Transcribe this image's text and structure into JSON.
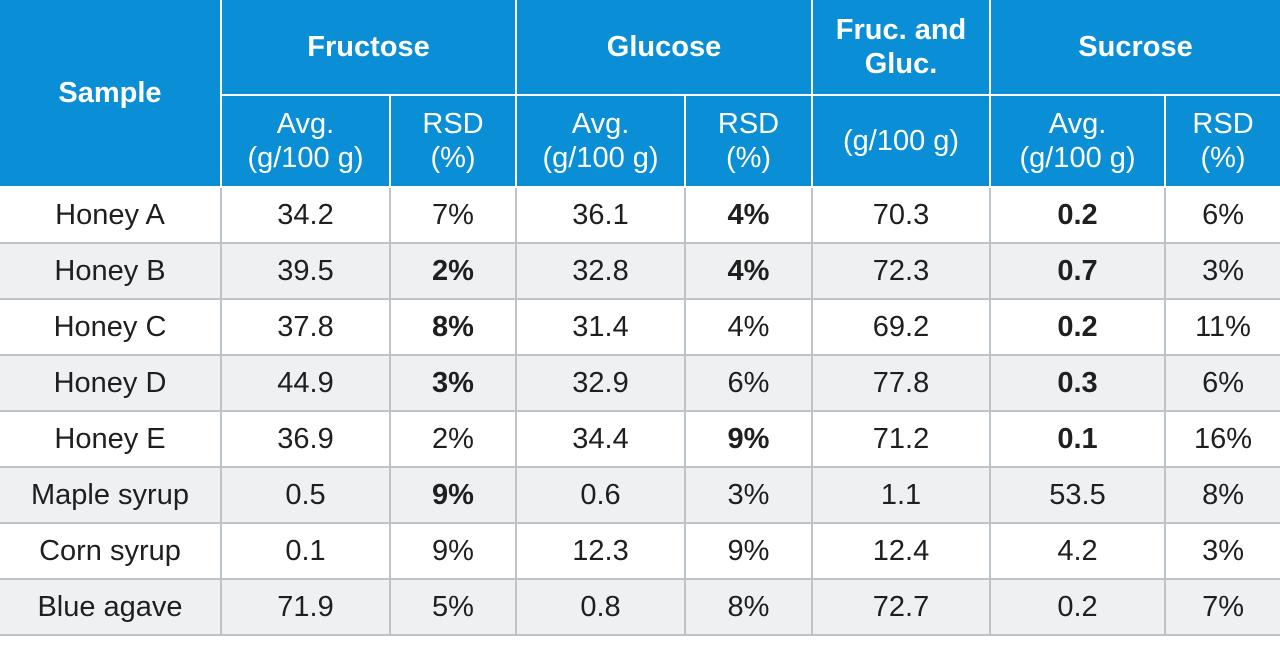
{
  "header": {
    "sample": "Sample",
    "groups": [
      "Fructose",
      "Glucose",
      "Fruc. and Gluc.",
      "Sucrose"
    ],
    "avg": "Avg. (g/100 g)",
    "rsd": "RSD (%)",
    "fruc_gluc_unit": "(g/100 g)"
  },
  "rows": [
    {
      "name": "Honey A",
      "cells": [
        [
          "34.2",
          false
        ],
        [
          "7%",
          false
        ],
        [
          "36.1",
          false
        ],
        [
          "4%",
          true
        ],
        [
          "70.3",
          false
        ],
        [
          "0.2",
          true
        ],
        [
          "6%",
          false
        ]
      ]
    },
    {
      "name": "Honey B",
      "cells": [
        [
          "39.5",
          false
        ],
        [
          "2%",
          true
        ],
        [
          "32.8",
          false
        ],
        [
          "4%",
          true
        ],
        [
          "72.3",
          false
        ],
        [
          "0.7",
          true
        ],
        [
          "3%",
          false
        ]
      ]
    },
    {
      "name": "Honey C",
      "cells": [
        [
          "37.8",
          false
        ],
        [
          "8%",
          true
        ],
        [
          "31.4",
          false
        ],
        [
          "4%",
          false
        ],
        [
          "69.2",
          false
        ],
        [
          "0.2",
          true
        ],
        [
          "11%",
          false
        ]
      ]
    },
    {
      "name": "Honey D",
      "cells": [
        [
          "44.9",
          false
        ],
        [
          "3%",
          true
        ],
        [
          "32.9",
          false
        ],
        [
          "6%",
          false
        ],
        [
          "77.8",
          false
        ],
        [
          "0.3",
          true
        ],
        [
          "6%",
          false
        ]
      ]
    },
    {
      "name": "Honey E",
      "cells": [
        [
          "36.9",
          false
        ],
        [
          "2%",
          false
        ],
        [
          "34.4",
          false
        ],
        [
          "9%",
          true
        ],
        [
          "71.2",
          false
        ],
        [
          "0.1",
          true
        ],
        [
          "16%",
          false
        ]
      ]
    },
    {
      "name": "Maple syrup",
      "cells": [
        [
          "0.5",
          false
        ],
        [
          "9%",
          true
        ],
        [
          "0.6",
          false
        ],
        [
          "3%",
          false
        ],
        [
          "1.1",
          false
        ],
        [
          "53.5",
          false
        ],
        [
          "8%",
          false
        ]
      ]
    },
    {
      "name": "Corn syrup",
      "cells": [
        [
          "0.1",
          false
        ],
        [
          "9%",
          false
        ],
        [
          "12.3",
          false
        ],
        [
          "9%",
          false
        ],
        [
          "12.4",
          false
        ],
        [
          "4.2",
          false
        ],
        [
          "3%",
          false
        ]
      ]
    },
    {
      "name": "Blue agave",
      "cells": [
        [
          "71.9",
          false
        ],
        [
          "5%",
          false
        ],
        [
          "0.8",
          false
        ],
        [
          "8%",
          false
        ],
        [
          "72.7",
          false
        ],
        [
          "0.2",
          false
        ],
        [
          "7%",
          false
        ]
      ]
    }
  ]
}
